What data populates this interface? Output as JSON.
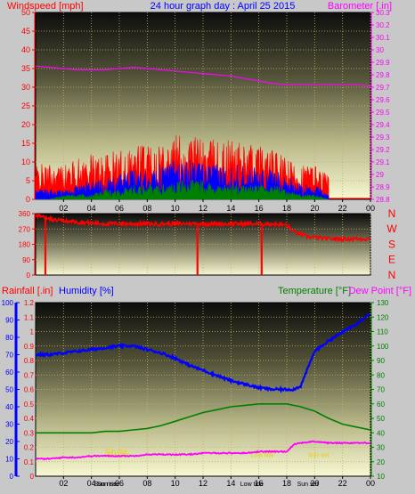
{
  "chart_data": [
    {
      "type": "line",
      "title": "24 hour graph day : April 25 2015",
      "ylabel": "Windspeed [mph]",
      "y2label": "Barometer [.in]",
      "x_ticks": [
        "02",
        "04",
        "06",
        "08",
        "10",
        "12",
        "14",
        "16",
        "18",
        "20",
        "22",
        "00"
      ],
      "ylim": [
        0,
        50
      ],
      "y_ticks": [
        0,
        5,
        10,
        15,
        20,
        25,
        30,
        35,
        40,
        45,
        50
      ],
      "y2lim": [
        28.8,
        30.3
      ],
      "y2_ticks": [
        "28.8",
        "28.9",
        "29",
        "29.1",
        "29.2",
        "29.3",
        "29.4",
        "29.5",
        "29.6",
        "29.7",
        "29.8",
        "29.9",
        "30",
        "30.1",
        "30.2",
        "30.3"
      ],
      "grid": true,
      "series": [
        {
          "color": "#ff00ff",
          "axis": "y2",
          "x": [
            0,
            1,
            2,
            3,
            4,
            5,
            6,
            7,
            8,
            9,
            10,
            11,
            12,
            13,
            14,
            15,
            16,
            17,
            18,
            19,
            20,
            21,
            22,
            23,
            24
          ],
          "values": [
            29.87,
            29.86,
            29.85,
            29.84,
            29.84,
            29.84,
            29.85,
            29.86,
            29.85,
            29.84,
            29.83,
            29.82,
            29.81,
            29.8,
            29.79,
            29.77,
            29.75,
            29.73,
            29.72,
            29.72,
            29.72,
            29.72,
            29.72,
            29.72,
            29.71
          ]
        },
        {
          "color": "#ff0000",
          "axis": "y",
          "x": [
            0,
            1,
            2,
            3,
            4,
            5,
            6,
            7,
            8,
            9,
            10,
            11,
            12,
            13,
            14,
            15,
            16,
            17,
            18,
            19,
            20,
            21
          ],
          "values": [
            7,
            7,
            7,
            8,
            9,
            9,
            10,
            11,
            12,
            12,
            13,
            13,
            12,
            12,
            12,
            11,
            11,
            10,
            8,
            7,
            7,
            5
          ]
        },
        {
          "color": "#0000ff",
          "axis": "y",
          "x": [
            0,
            1,
            2,
            3,
            4,
            5,
            6,
            7,
            8,
            9,
            10,
            11,
            12,
            13,
            14,
            15,
            16,
            17,
            18,
            19,
            20,
            21
          ],
          "values": [
            2,
            2,
            2,
            3,
            4,
            4,
            5,
            6,
            6,
            7,
            8,
            8,
            7,
            7,
            7,
            7,
            6,
            6,
            5,
            3,
            3,
            1
          ]
        },
        {
          "color": "#008000",
          "axis": "y",
          "x": [
            0,
            1,
            2,
            3,
            4,
            5,
            6,
            7,
            8,
            9,
            10,
            11,
            12,
            13,
            14,
            15,
            16,
            17,
            18,
            19,
            20,
            21
          ],
          "values": [
            0,
            0,
            1,
            1,
            1,
            2,
            2,
            3,
            3,
            3,
            4,
            4,
            4,
            3,
            3,
            3,
            3,
            3,
            2,
            1,
            1,
            0
          ]
        }
      ]
    },
    {
      "type": "scatter",
      "ylabel": "N W S E N",
      "ylim": [
        0,
        360
      ],
      "y_ticks": [
        0,
        90,
        180,
        270,
        360
      ],
      "compass": [
        "N",
        "W",
        "S",
        "E",
        "N"
      ],
      "x_ticks": [
        "02",
        "04",
        "06",
        "08",
        "10",
        "12",
        "14",
        "16",
        "18",
        "20",
        "22",
        "00"
      ],
      "series": [
        {
          "color": "#ff0000",
          "x": [
            0,
            0.5,
            1,
            1.5,
            2,
            3,
            4,
            5,
            6,
            7,
            8,
            9,
            10,
            11,
            12,
            13,
            14,
            15,
            16,
            17,
            18,
            18.5,
            19,
            19.5,
            20,
            21,
            22,
            23,
            24
          ],
          "values": [
            355,
            340,
            330,
            320,
            318,
            310,
            305,
            300,
            302,
            300,
            300,
            300,
            300,
            302,
            300,
            300,
            300,
            300,
            300,
            300,
            292,
            255,
            238,
            225,
            220,
            212,
            212,
            212,
            212
          ]
        }
      ]
    },
    {
      "type": "line",
      "ylabel": "Rainfall [.in]",
      "ylabel2": "Humidity [%]",
      "y2label": "Temperature [°F]",
      "y2label2": "Dew Point [°F]",
      "x_ticks": [
        "02",
        "04",
        "06",
        "08",
        "10",
        "12",
        "14",
        "16",
        "18",
        "20",
        "22",
        "00"
      ],
      "rain_ticks": [
        "0",
        "0.1",
        "0.2",
        "0.3",
        "0.4",
        "0.5",
        "0.6",
        "0.7",
        "0.8",
        "0.9",
        "1",
        "1.1",
        "1.2"
      ],
      "ylim": [
        0,
        100
      ],
      "y_ticks": [
        0,
        10,
        20,
        30,
        40,
        50,
        60,
        70,
        80,
        90,
        100
      ],
      "y2lim": [
        10,
        130
      ],
      "y2_ticks": [
        10,
        20,
        30,
        40,
        50,
        60,
        70,
        80,
        90,
        100,
        110,
        120,
        130
      ],
      "annotations": [
        "Sun rise",
        "Sun rise",
        "Low tide",
        "Sun set"
      ],
      "grid": true,
      "series": [
        {
          "color": "#0000ff",
          "x": [
            0,
            1,
            2,
            3,
            4,
            5,
            6,
            7,
            8,
            9,
            10,
            11,
            12,
            13,
            14,
            15,
            16,
            17,
            18,
            18.5,
            19,
            19.5,
            20,
            21,
            22,
            23,
            24
          ],
          "values": [
            70,
            70,
            71,
            72,
            73,
            74,
            75,
            75,
            73,
            71,
            68,
            64,
            61,
            58,
            55,
            53,
            51,
            50,
            50,
            50,
            52,
            62,
            72,
            78,
            83,
            88,
            94
          ]
        },
        {
          "color": "#008000",
          "axis": "y2",
          "x": [
            0,
            1,
            2,
            3,
            4,
            5,
            6,
            7,
            8,
            9,
            10,
            11,
            12,
            13,
            14,
            15,
            16,
            17,
            18,
            19,
            20,
            21,
            22,
            23,
            24
          ],
          "values": [
            40,
            40,
            40,
            40,
            40,
            41,
            41,
            42,
            43,
            45,
            48,
            51,
            54,
            56,
            58,
            59,
            60,
            60,
            60,
            58,
            55,
            50,
            46,
            44,
            42
          ]
        },
        {
          "color": "#ff00ff",
          "axis": "y2",
          "x": [
            0,
            1,
            2,
            3,
            4,
            5,
            6,
            7,
            8,
            9,
            10,
            11,
            12,
            13,
            14,
            15,
            16,
            17,
            18,
            18.5,
            19,
            20,
            21,
            22,
            23,
            24
          ],
          "values": [
            22,
            22,
            23,
            23,
            24,
            24,
            24,
            24,
            25,
            25,
            25,
            25,
            26,
            26,
            26,
            26,
            27,
            27,
            27,
            32,
            33,
            34,
            33,
            33,
            33,
            33
          ]
        }
      ]
    }
  ]
}
